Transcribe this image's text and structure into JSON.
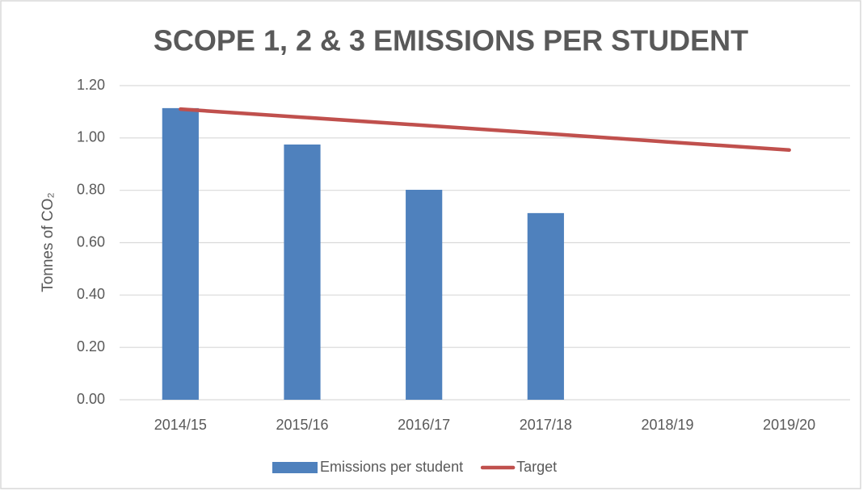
{
  "chart_data": {
    "type": "bar",
    "title": "SCOPE 1, 2 & 3 EMISSIONS PER STUDENT",
    "y_label": "Tonnes of CO₂",
    "categories": [
      "2014/15",
      "2015/16",
      "2016/17",
      "2017/18",
      "2018/19",
      "2019/20"
    ],
    "series": [
      {
        "name": "Emissions per student",
        "type": "bar",
        "color": "#4f81bd",
        "values": [
          1.114,
          0.975,
          0.802,
          0.713,
          null,
          null
        ]
      },
      {
        "name": "Target",
        "type": "line",
        "color": "#c0504d",
        "values": [
          1.11,
          1.079,
          1.048,
          1.017,
          0.985,
          0.954
        ]
      }
    ],
    "ylim": [
      0,
      1.2
    ],
    "yticks": [
      {
        "value": 0,
        "label": "0.00"
      },
      {
        "value": 0.2,
        "label": "0.20"
      },
      {
        "value": 0.4,
        "label": "0.40"
      },
      {
        "value": 0.6,
        "label": "0.60"
      },
      {
        "value": 0.8,
        "label": "0.80"
      },
      {
        "value": 1.0,
        "label": "1.00"
      },
      {
        "value": 1.2,
        "label": "1.20"
      }
    ],
    "grid": true,
    "legend": "bottom"
  }
}
